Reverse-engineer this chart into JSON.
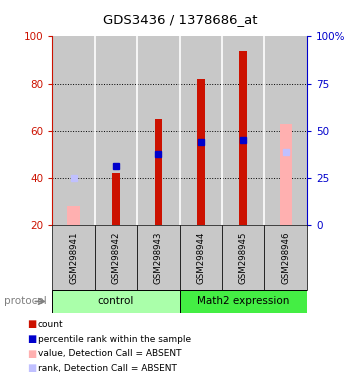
{
  "title": "GDS3436 / 1378686_at",
  "samples": [
    "GSM298941",
    "GSM298942",
    "GSM298943",
    "GSM298944",
    "GSM298945",
    "GSM298946"
  ],
  "ylim_left": [
    20,
    100
  ],
  "ylim_right": [
    0,
    100
  ],
  "yticks_left": [
    20,
    40,
    60,
    80,
    100
  ],
  "yticks_right": [
    0,
    25,
    50,
    75,
    100
  ],
  "yticklabels_right": [
    "0",
    "25",
    "50",
    "75",
    "100%"
  ],
  "red_bars": [
    null,
    42,
    65,
    82,
    94,
    null
  ],
  "blue_dots": [
    null,
    45,
    50,
    55,
    56,
    null
  ],
  "pink_bars": [
    28,
    null,
    null,
    null,
    null,
    63
  ],
  "lavender_dots": [
    40,
    null,
    null,
    null,
    null,
    51
  ],
  "red_color": "#CC1100",
  "blue_color": "#0000CC",
  "pink_color": "#FFB0B0",
  "lavender_color": "#C0C0FF",
  "control_color": "#AAFFAA",
  "math2_color": "#44EE44",
  "sample_bg_color": "#C8C8C8",
  "left_axis_color": "#CC1100",
  "right_axis_color": "#0000CC",
  "legend_items": [
    {
      "color": "#CC1100",
      "label": "count"
    },
    {
      "color": "#0000CC",
      "label": "percentile rank within the sample"
    },
    {
      "color": "#FFB0B0",
      "label": "value, Detection Call = ABSENT"
    },
    {
      "color": "#C0C0FF",
      "label": "rank, Detection Call = ABSENT"
    }
  ]
}
